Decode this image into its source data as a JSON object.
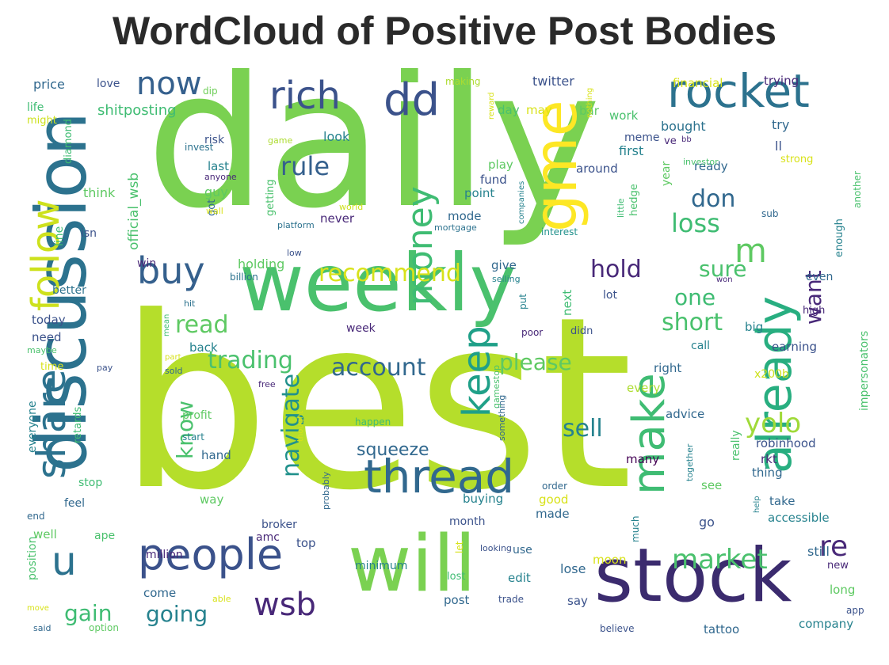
{
  "title": "WordCloud of Positive Post Bodies",
  "palette": {
    "c1": "#440154",
    "c2": "#3b528b",
    "c3": "#2c728e",
    "c4": "#21918c",
    "c5": "#28ae80",
    "c6": "#5ec962",
    "c7": "#addc30",
    "c8": "#d8e219",
    "c9": "#fde725"
  },
  "words": [
    {
      "text": "best",
      "color": "#b5de2b"
    },
    {
      "text": "daily",
      "color": "#7ad151"
    },
    {
      "text": "weekly",
      "color": "#4ac16d"
    },
    {
      "text": "discussion",
      "color": "#2c728e"
    },
    {
      "text": "will",
      "color": "#7ad151"
    },
    {
      "text": "stock",
      "color": "#3b2b6e"
    },
    {
      "text": "gme",
      "color": "#fde725"
    },
    {
      "text": "people",
      "color": "#3b528b"
    },
    {
      "text": "already",
      "color": "#28ae80"
    },
    {
      "text": "thread",
      "color": "#31688e"
    },
    {
      "text": "rocket",
      "color": "#2c728e"
    },
    {
      "text": "make",
      "color": "#3fbc73"
    },
    {
      "text": "rich",
      "color": "#3b528b"
    },
    {
      "text": "dd",
      "color": "#3b528b"
    },
    {
      "text": "share",
      "color": "#2c728e"
    },
    {
      "text": "follow",
      "color": "#cde11d"
    },
    {
      "text": "now",
      "color": "#35608d"
    },
    {
      "text": "buy",
      "color": "#35608d"
    },
    {
      "text": "keep",
      "color": "#1fa088"
    },
    {
      "text": "money",
      "color": "#3fbc73"
    },
    {
      "text": "wsb",
      "color": "#482878"
    },
    {
      "text": "u",
      "color": "#2c728e"
    },
    {
      "text": "m",
      "color": "#5ec962"
    },
    {
      "text": "market",
      "color": "#4ac16d"
    },
    {
      "text": "account",
      "color": "#31688e"
    },
    {
      "text": "trading",
      "color": "#4ac16d"
    },
    {
      "text": "navigate",
      "color": "#21918c"
    },
    {
      "text": "short",
      "color": "#4ac16d"
    },
    {
      "text": "re",
      "color": "#482878"
    },
    {
      "text": "loss",
      "color": "#3fbc73"
    },
    {
      "text": "don",
      "color": "#31688e"
    },
    {
      "text": "hold",
      "color": "#482878"
    },
    {
      "text": "sure",
      "color": "#4ac16d"
    },
    {
      "text": "want",
      "color": "#482878"
    },
    {
      "text": "recommend",
      "color": "#d8e219"
    },
    {
      "text": "please",
      "color": "#5ec962"
    },
    {
      "text": "gain",
      "color": "#3fbc73"
    },
    {
      "text": "going",
      "color": "#26828e"
    },
    {
      "text": "read",
      "color": "#5ec962"
    },
    {
      "text": "rule",
      "color": "#35608d"
    },
    {
      "text": "sell",
      "color": "#26828e"
    },
    {
      "text": "yolo",
      "color": "#a0da39"
    },
    {
      "text": "know",
      "color": "#4ac16d"
    },
    {
      "text": "one",
      "color": "#3fbc73"
    },
    {
      "text": "squeeze",
      "color": "#31688e"
    },
    {
      "text": "price",
      "color": "#31688e"
    },
    {
      "text": "love",
      "color": "#3b528b"
    },
    {
      "text": "dip",
      "color": "#6ece58"
    },
    {
      "text": "making",
      "color": "#addc30"
    },
    {
      "text": "twitter",
      "color": "#3b528b"
    },
    {
      "text": "financial",
      "color": "#d8e219"
    },
    {
      "text": "trying",
      "color": "#482878"
    },
    {
      "text": "life",
      "color": "#3fbc73"
    },
    {
      "text": "might",
      "color": "#cde11d"
    },
    {
      "text": "shitposting",
      "color": "#3fbc73"
    },
    {
      "text": "day",
      "color": "#4ac16d"
    },
    {
      "text": "may",
      "color": "#d8e219"
    },
    {
      "text": "bar",
      "color": "#5ec962"
    },
    {
      "text": "work",
      "color": "#4ac16d"
    },
    {
      "text": "meme",
      "color": "#3b528b"
    },
    {
      "text": "bought",
      "color": "#2c728e"
    },
    {
      "text": "try",
      "color": "#31688e"
    },
    {
      "text": "ve",
      "color": "#482878"
    },
    {
      "text": "bb",
      "color": "#482878"
    },
    {
      "text": "ll",
      "color": "#3b528b"
    },
    {
      "text": "strong",
      "color": "#d8e219"
    },
    {
      "text": "risk",
      "color": "#3b528b"
    },
    {
      "text": "invest",
      "color": "#2c728e"
    },
    {
      "text": "game",
      "color": "#addc30"
    },
    {
      "text": "look",
      "color": "#26828e"
    },
    {
      "text": "first",
      "color": "#26828e"
    },
    {
      "text": "last",
      "color": "#26828e"
    },
    {
      "text": "anyone",
      "color": "#482878"
    },
    {
      "text": "guy",
      "color": "#5ec962"
    },
    {
      "text": "play",
      "color": "#5ec962"
    },
    {
      "text": "around",
      "color": "#3b528b"
    },
    {
      "text": "ready",
      "color": "#31688e"
    },
    {
      "text": "year",
      "color": "#5ec962"
    },
    {
      "text": "diamond",
      "color": "#3fbc73"
    },
    {
      "text": "official_wsb",
      "color": "#4ac16d"
    },
    {
      "text": "think",
      "color": "#5ec962"
    },
    {
      "text": "got",
      "color": "#31688e"
    },
    {
      "text": "wall",
      "color": "#d8e219"
    },
    {
      "text": "line",
      "color": "#3fbc73"
    },
    {
      "text": "isn",
      "color": "#3b528b"
    },
    {
      "text": "fund",
      "color": "#3b528b"
    },
    {
      "text": "point",
      "color": "#26828e"
    },
    {
      "text": "mode",
      "color": "#31688e"
    },
    {
      "text": "never",
      "color": "#482878"
    },
    {
      "text": "mortgage",
      "color": "#2c728e"
    },
    {
      "text": "interest",
      "color": "#21918c"
    },
    {
      "text": "little",
      "color": "#3fbc73"
    },
    {
      "text": "hedge",
      "color": "#4ac16d"
    },
    {
      "text": "another",
      "color": "#4ac16d"
    },
    {
      "text": "enough",
      "color": "#26828e"
    },
    {
      "text": "sub",
      "color": "#31688e"
    },
    {
      "text": "getting",
      "color": "#4ac16d"
    },
    {
      "text": "platform",
      "color": "#2c728e"
    },
    {
      "text": "world",
      "color": "#cde11d"
    },
    {
      "text": "low",
      "color": "#3b528b"
    },
    {
      "text": "win",
      "color": "#482878"
    },
    {
      "text": "holding",
      "color": "#5ec962"
    },
    {
      "text": "billion",
      "color": "#2c728e"
    },
    {
      "text": "give",
      "color": "#31688e"
    },
    {
      "text": "selling",
      "color": "#26828e"
    },
    {
      "text": "lot",
      "color": "#3b528b"
    },
    {
      "text": "won",
      "color": "#482878"
    },
    {
      "text": "even",
      "color": "#31688e"
    },
    {
      "text": "high",
      "color": "#482878"
    },
    {
      "text": "better",
      "color": "#2c728e"
    },
    {
      "text": "hit",
      "color": "#2c728e"
    },
    {
      "text": "today",
      "color": "#3b528b"
    },
    {
      "text": "need",
      "color": "#3b528b"
    },
    {
      "text": "maybe",
      "color": "#4ac16d"
    },
    {
      "text": "time",
      "color": "#d8e219"
    },
    {
      "text": "pay",
      "color": "#3b528b"
    },
    {
      "text": "mean",
      "color": "#3fbc73"
    },
    {
      "text": "week",
      "color": "#482878"
    },
    {
      "text": "put",
      "color": "#26828e"
    },
    {
      "text": "poor",
      "color": "#482878"
    },
    {
      "text": "next",
      "color": "#3fbc73"
    },
    {
      "text": "didn",
      "color": "#3b528b"
    },
    {
      "text": "big",
      "color": "#26828e"
    },
    {
      "text": "call",
      "color": "#26828e"
    },
    {
      "text": "earning",
      "color": "#3b528b"
    },
    {
      "text": "right",
      "color": "#31688e"
    },
    {
      "text": "x200b",
      "color": "#cde11d"
    },
    {
      "text": "back",
      "color": "#26828e"
    },
    {
      "text": "part",
      "color": "#d8e219"
    },
    {
      "text": "sold",
      "color": "#31688e"
    },
    {
      "text": "free",
      "color": "#482878"
    },
    {
      "text": "every",
      "color": "#addc30"
    },
    {
      "text": "gamestop",
      "color": "#4ac16d"
    },
    {
      "text": "everyone",
      "color": "#26828e"
    },
    {
      "text": "retards",
      "color": "#3fbc73"
    },
    {
      "text": "profit",
      "color": "#5ec962"
    },
    {
      "text": "start",
      "color": "#26828e"
    },
    {
      "text": "thought",
      "color": "#d8e219"
    },
    {
      "text": "happen",
      "color": "#3fbc73"
    },
    {
      "text": "something",
      "color": "#31688e"
    },
    {
      "text": "advice",
      "color": "#31688e"
    },
    {
      "text": "robinhood",
      "color": "#3b528b"
    },
    {
      "text": "impersonators",
      "color": "#4ac16d"
    },
    {
      "text": "many",
      "color": "#440154"
    },
    {
      "text": "really",
      "color": "#4ac16d"
    },
    {
      "text": "rkt",
      "color": "#482878"
    },
    {
      "text": "thing",
      "color": "#31688e"
    },
    {
      "text": "hand",
      "color": "#31688e"
    },
    {
      "text": "buying",
      "color": "#26828e"
    },
    {
      "text": "together",
      "color": "#26828e"
    },
    {
      "text": "stop",
      "color": "#3fbc73"
    },
    {
      "text": "way",
      "color": "#5ec962"
    },
    {
      "text": "order",
      "color": "#31688e"
    },
    {
      "text": "good",
      "color": "#d8e219"
    },
    {
      "text": "see",
      "color": "#5ec962"
    },
    {
      "text": "take",
      "color": "#31688e"
    },
    {
      "text": "feel",
      "color": "#31688e"
    },
    {
      "text": "probably",
      "color": "#31688e"
    },
    {
      "text": "made",
      "color": "#31688e"
    },
    {
      "text": "help",
      "color": "#26828e"
    },
    {
      "text": "accessible",
      "color": "#26828e"
    },
    {
      "text": "end",
      "color": "#31688e"
    },
    {
      "text": "broker",
      "color": "#3b528b"
    },
    {
      "text": "month",
      "color": "#3b528b"
    },
    {
      "text": "go",
      "color": "#3b528b"
    },
    {
      "text": "well",
      "color": "#5ec962"
    },
    {
      "text": "ape",
      "color": "#4ac16d"
    },
    {
      "text": "amc",
      "color": "#482878"
    },
    {
      "text": "looking",
      "color": "#3b528b"
    },
    {
      "text": "top",
      "color": "#3b528b"
    },
    {
      "text": "let",
      "color": "#d8e219"
    },
    {
      "text": "use",
      "color": "#31688e"
    },
    {
      "text": "much",
      "color": "#26828e"
    },
    {
      "text": "moon",
      "color": "#d8e219"
    },
    {
      "text": "million",
      "color": "#482878"
    },
    {
      "text": "minimum",
      "color": "#26828e"
    },
    {
      "text": "lost",
      "color": "#3fbc73"
    },
    {
      "text": "lose",
      "color": "#31688e"
    },
    {
      "text": "still",
      "color": "#31688e"
    },
    {
      "text": "new",
      "color": "#482878"
    },
    {
      "text": "position",
      "color": "#4ac16d"
    },
    {
      "text": "come",
      "color": "#31688e"
    },
    {
      "text": "able",
      "color": "#d8e219"
    },
    {
      "text": "edit",
      "color": "#26828e"
    },
    {
      "text": "move",
      "color": "#d8e219"
    },
    {
      "text": "post",
      "color": "#31688e"
    },
    {
      "text": "trade",
      "color": "#3b528b"
    },
    {
      "text": "say",
      "color": "#3b528b"
    },
    {
      "text": "long",
      "color": "#5ec962"
    },
    {
      "text": "app",
      "color": "#3b528b"
    },
    {
      "text": "said",
      "color": "#31688e"
    },
    {
      "text": "option",
      "color": "#5ec962"
    },
    {
      "text": "believe",
      "color": "#3b528b"
    },
    {
      "text": "tattoo",
      "color": "#31688e"
    },
    {
      "text": "company",
      "color": "#26828e"
    },
    {
      "text": "investor",
      "color": "#4ac16d"
    },
    {
      "text": "nothing",
      "color": "#d8e219"
    },
    {
      "text": "reward",
      "color": "#d8e219"
    },
    {
      "text": "companies",
      "color": "#26828e"
    }
  ]
}
